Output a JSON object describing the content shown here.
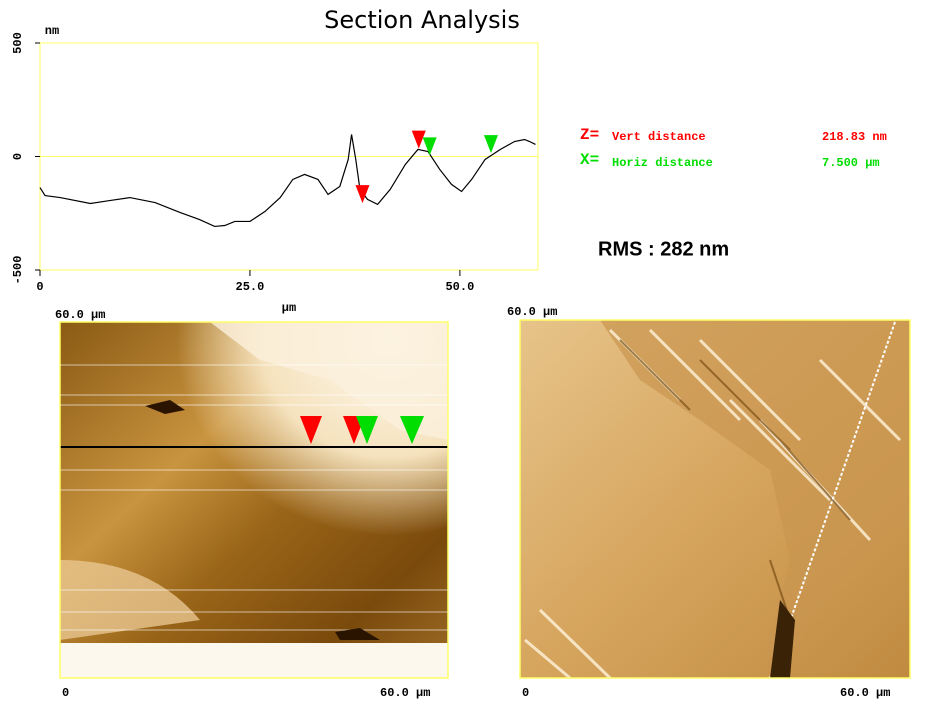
{
  "chart_data": {
    "type": "line",
    "title": "Section Analysis",
    "y_label": "nm",
    "x_label": "µm",
    "xlim": [
      0,
      59.3
    ],
    "ylim": [
      -500,
      500
    ],
    "xticks": [
      {
        "value": 0,
        "label": "0"
      },
      {
        "value": 25,
        "label": "25.0"
      },
      {
        "value": 50,
        "label": "50.0"
      }
    ],
    "yticks": [
      500,
      0,
      -500
    ],
    "x": [
      0,
      0.6,
      2.4,
      6.0,
      8.3,
      10.7,
      13.7,
      16.7,
      19.0,
      20.8,
      22.0,
      23.2,
      25.0,
      26.8,
      28.6,
      30.1,
      31.5,
      33.1,
      34.3,
      35.7,
      36.7,
      37.1,
      37.6,
      38.1,
      39.0,
      40.2,
      41.7,
      43.5,
      45.0,
      46.2,
      47.6,
      49.0,
      50.2,
      51.4,
      53.0,
      54.8,
      56.5,
      57.7,
      58.3,
      59.0
    ],
    "series": [
      {
        "color": "#000000",
        "values": [
          -137,
          -172,
          -181,
          -207,
          -194,
          -181,
          -203,
          -247,
          -278,
          -308,
          -304,
          -286,
          -286,
          -242,
          -181,
          -101,
          -79,
          -101,
          -167,
          -132,
          -13,
          97,
          -13,
          -145,
          -189,
          -211,
          -145,
          -35,
          31,
          22,
          -57,
          -123,
          -154,
          -101,
          -13,
          31,
          66,
          75,
          66,
          53
        ]
      }
    ],
    "cursors": [
      {
        "x": 45.1,
        "y": 70,
        "color": "#ff0000"
      },
      {
        "x": 38.4,
        "y": -170,
        "color": "#ff0000"
      },
      {
        "x": 46.4,
        "y": 40,
        "color": "#00dd00"
      },
      {
        "x": 53.7,
        "y": 50,
        "color": "#00dd00"
      }
    ],
    "zero_line_color": "#ffff66"
  },
  "readout": {
    "z_key": "Z=",
    "z_name": "Vert distance",
    "z_value": "218.83 nm",
    "x_key": "X=",
    "x_name": "Horiz distance",
    "x_value": "7.500 µm",
    "rms": "RMS : 282 nm"
  },
  "images": [
    {
      "top_label": "60.0 µm",
      "bottom_start": "0",
      "bottom_end": "60.0 µm"
    },
    {
      "top_label": "60.0 µm",
      "bottom_start": "0",
      "bottom_end": "60.0 µm"
    }
  ]
}
